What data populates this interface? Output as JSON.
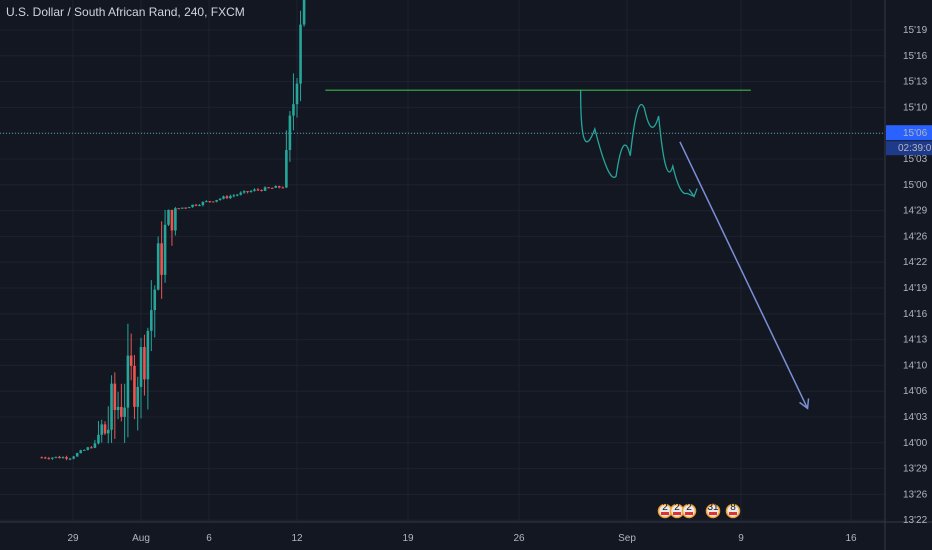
{
  "header": {
    "title": "U.S. Dollar / South African Rand, 240, FXCM"
  },
  "chart_data": {
    "type": "candlestick",
    "symbol": "U.S. Dollar / South African Rand",
    "interval": "240",
    "source": "FXCM",
    "y_ticks": [
      "15'19",
      "15'16",
      "15'13",
      "15'10",
      "15'06",
      "15'03",
      "15'00",
      "14'29",
      "14'26",
      "14'22",
      "14'19",
      "14'16",
      "14'13",
      "14'10",
      "14'06",
      "14'03",
      "14'00",
      "13'29",
      "13'26",
      "13'22"
    ],
    "x_ticks": [
      "29",
      "Aug",
      "6",
      "12",
      "19",
      "26",
      "Sep",
      "9",
      "16"
    ],
    "current_price_label": "15'06",
    "countdown_label": "02:39:0",
    "trend_segments": [
      {
        "dates": [
          "2018-07-25",
          "2018-07-27"
        ],
        "values": [
          13.6,
          13.6
        ]
      },
      {
        "dates": [
          "2018-07-27",
          "2018-07-29"
        ],
        "values": [
          13.6,
          14.0
        ]
      },
      {
        "dates": [
          "2018-07-29",
          "2018-08-01"
        ],
        "values": [
          14.0,
          14.1
        ]
      },
      {
        "dates": [
          "2018-08-01",
          "2018-08-09"
        ],
        "values": [
          14.1,
          14.85
        ]
      },
      {
        "dates": [
          "2018-08-09",
          "2018-08-11"
        ],
        "values": [
          14.85,
          14.95
        ]
      },
      {
        "dates": [
          "2018-08-11",
          "2018-08-13"
        ],
        "values": [
          14.95,
          15.38
        ]
      },
      {
        "dates": [
          "2018-08-13",
          "2018-09-01"
        ],
        "values": [
          15.38,
          15.3
        ]
      }
    ],
    "support_level": 15.12,
    "projection": {
      "color": "#26a69a",
      "points": [
        [
          "2018-09-01",
          15.12
        ],
        [
          "2018-09-03",
          15.02
        ],
        [
          "2018-09-04",
          15.0
        ],
        [
          "2018-09-05",
          15.07
        ],
        [
          "2018-09-06",
          15.12
        ],
        [
          "2018-09-07",
          15.05
        ],
        [
          "2018-09-08",
          14.85
        ],
        [
          "2018-09-09",
          14.68
        ]
      ]
    },
    "forecast_arrow": {
      "color": "#7b8fd6",
      "from": [
        "2018-09-08",
        15.05
      ],
      "to": [
        "2018-09-17",
        14.04
      ]
    },
    "events": [
      {
        "label": "2",
        "flag": "US"
      },
      {
        "label": "2",
        "flag": "US"
      },
      {
        "label": "2",
        "flag": "US"
      },
      {
        "label": "31",
        "flag": "US"
      },
      {
        "label": "8",
        "flag": "US"
      }
    ],
    "colors": {
      "up": "#26a69a",
      "down": "#ef5350",
      "background": "#131722",
      "grid": "#1e2230",
      "support": "#3ab54a",
      "price_line": "#4e9ca8"
    },
    "grid": true
  }
}
